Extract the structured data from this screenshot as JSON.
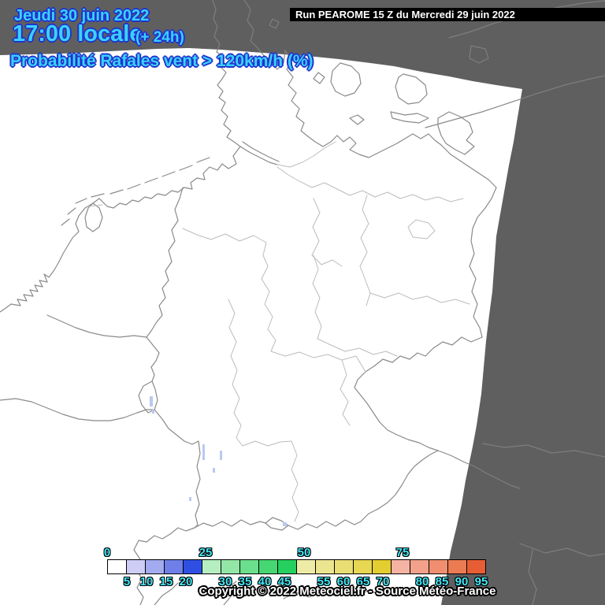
{
  "header": {
    "date": "Jeudi 30 juin 2022",
    "time": "17:00 locale",
    "offset": "(+ 24h)",
    "parameter": "Probabilité Rafales vent > 120km/h (%)"
  },
  "run_info": {
    "label": "Run PEAROME 15 Z du Mercredi 29 juin 2022"
  },
  "footer": {
    "copyright": "Copyright © 2022 Meteociel.fr - Source Météo-France"
  },
  "colorbar": {
    "unit": "%",
    "major_labels": [
      "0",
      "25",
      "50",
      "75"
    ],
    "minor_labels": [
      "5",
      "10",
      "15",
      "20",
      "30",
      "35",
      "40",
      "45",
      "55",
      "60",
      "65",
      "70",
      "80",
      "85",
      "90",
      "95"
    ],
    "cells": [
      {
        "value": 0,
        "color": "#ffffff"
      },
      {
        "value": 5,
        "color": "#cdcdf5"
      },
      {
        "value": 10,
        "color": "#a3abf0"
      },
      {
        "value": 15,
        "color": "#6e80e8"
      },
      {
        "value": 20,
        "color": "#2f4fe3"
      },
      {
        "value": 25,
        "color": "#b5eec0"
      },
      {
        "value": 30,
        "color": "#92e7a7"
      },
      {
        "value": 35,
        "color": "#6cdf8c"
      },
      {
        "value": 40,
        "color": "#46d772"
      },
      {
        "value": 45,
        "color": "#26d05e"
      },
      {
        "value": 50,
        "color": "#eeeba7"
      },
      {
        "value": 55,
        "color": "#ebe590"
      },
      {
        "value": 60,
        "color": "#e9de73"
      },
      {
        "value": 65,
        "color": "#e7d753"
      },
      {
        "value": 70,
        "color": "#e4cd31"
      },
      {
        "value": 75,
        "color": "#f5b3a3"
      },
      {
        "value": 80,
        "color": "#f2a28b"
      },
      {
        "value": 85,
        "color": "#ef8f6f"
      },
      {
        "value": 90,
        "color": "#eb7b53"
      },
      {
        "value": 95,
        "color": "#e75e34"
      }
    ]
  },
  "map": {
    "outside_domain_color": "#5f5f5f",
    "domain_color": "#ffffff",
    "country_border_color": "#8a8a8a",
    "state_border_color": "#bcbcbc",
    "border_on_gray_color": "#7e7e7e",
    "river_color": "#b9c9f1"
  }
}
